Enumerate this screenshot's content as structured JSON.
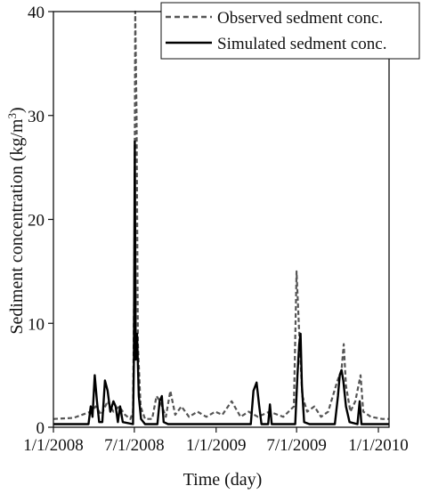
{
  "chart_data": {
    "type": "line",
    "xlabel": "Time (day)",
    "ylabel_main": "Sediment concentration (kg/m",
    "ylabel_sup": "3",
    "ylabel_tail": ")",
    "xlim": [
      "2008-01-01",
      "2010-01-25"
    ],
    "ylim": [
      0,
      40
    ],
    "x_ticks": [
      {
        "date": "2008-01-01",
        "label": "1/1/2008"
      },
      {
        "date": "2008-07-01",
        "label": "7/1/2008"
      },
      {
        "date": "2009-01-01",
        "label": "1/1/2009"
      },
      {
        "date": "2009-07-01",
        "label": "7/1/2009"
      },
      {
        "date": "2010-01-01",
        "label": "1/1/2010"
      }
    ],
    "y_ticks": [
      0,
      10,
      20,
      30,
      40
    ],
    "grid": false,
    "legend_position": "top-right",
    "series": [
      {
        "name": "Observed sedment conc.",
        "style": "dashed",
        "color": "#555555",
        "points": [
          [
            "2008-01-01",
            0.8
          ],
          [
            "2008-02-15",
            0.9
          ],
          [
            "2008-03-25",
            1.5
          ],
          [
            "2008-04-05",
            2.0
          ],
          [
            "2008-04-18",
            1.2
          ],
          [
            "2008-05-02",
            2.5
          ],
          [
            "2008-05-15",
            1.5
          ],
          [
            "2008-05-28",
            2.0
          ],
          [
            "2008-06-10",
            1.2
          ],
          [
            "2008-06-22",
            0.8
          ],
          [
            "2008-06-28",
            1.5
          ],
          [
            "2008-07-01",
            15.0
          ],
          [
            "2008-07-03",
            40.0
          ],
          [
            "2008-07-06",
            30.0
          ],
          [
            "2008-07-09",
            8.0
          ],
          [
            "2008-07-15",
            2.0
          ],
          [
            "2008-07-25",
            0.8
          ],
          [
            "2008-08-10",
            0.8
          ],
          [
            "2008-08-20",
            3.0
          ],
          [
            "2008-08-28",
            2.5
          ],
          [
            "2008-09-10",
            1.0
          ],
          [
            "2008-09-20",
            3.5
          ],
          [
            "2008-10-01",
            1.2
          ],
          [
            "2008-10-15",
            2.0
          ],
          [
            "2008-11-01",
            1.0
          ],
          [
            "2008-11-20",
            1.5
          ],
          [
            "2008-12-10",
            1.0
          ],
          [
            "2008-12-30",
            1.5
          ],
          [
            "2009-01-15",
            1.2
          ],
          [
            "2009-02-05",
            2.5
          ],
          [
            "2009-02-25",
            1.0
          ],
          [
            "2009-03-15",
            1.5
          ],
          [
            "2009-04-05",
            1.0
          ],
          [
            "2009-05-01",
            1.5
          ],
          [
            "2009-06-01",
            1.0
          ],
          [
            "2009-06-25",
            2.0
          ],
          [
            "2009-07-01",
            15.0
          ],
          [
            "2009-07-04",
            12.0
          ],
          [
            "2009-07-08",
            8.0
          ],
          [
            "2009-07-14",
            3.0
          ],
          [
            "2009-07-25",
            1.5
          ],
          [
            "2009-08-10",
            2.0
          ],
          [
            "2009-08-25",
            1.0
          ],
          [
            "2009-09-10",
            1.5
          ],
          [
            "2009-10-01",
            4.5
          ],
          [
            "2009-10-10",
            5.5
          ],
          [
            "2009-10-15",
            8.0
          ],
          [
            "2009-10-20",
            4.0
          ],
          [
            "2009-10-30",
            1.5
          ],
          [
            "2009-11-10",
            2.5
          ],
          [
            "2009-11-22",
            5.0
          ],
          [
            "2009-11-28",
            1.5
          ],
          [
            "2009-12-15",
            1.0
          ],
          [
            "2010-01-10",
            0.8
          ],
          [
            "2010-01-25",
            0.8
          ]
        ]
      },
      {
        "name": "Simulated sedment conc.",
        "style": "solid",
        "color": "#000000",
        "points": [
          [
            "2008-01-01",
            0.3
          ],
          [
            "2008-03-20",
            0.3
          ],
          [
            "2008-03-25",
            2.0
          ],
          [
            "2008-03-29",
            1.0
          ],
          [
            "2008-04-03",
            5.0
          ],
          [
            "2008-04-08",
            2.5
          ],
          [
            "2008-04-13",
            0.5
          ],
          [
            "2008-04-20",
            0.5
          ],
          [
            "2008-04-26",
            4.5
          ],
          [
            "2008-05-02",
            3.5
          ],
          [
            "2008-05-08",
            1.5
          ],
          [
            "2008-05-15",
            2.5
          ],
          [
            "2008-05-20",
            2.0
          ],
          [
            "2008-05-25",
            0.5
          ],
          [
            "2008-05-30",
            2.0
          ],
          [
            "2008-06-05",
            0.5
          ],
          [
            "2008-06-28",
            0.3
          ],
          [
            "2008-06-30",
            6.5
          ],
          [
            "2008-07-02",
            27.5
          ],
          [
            "2008-07-04",
            6.5
          ],
          [
            "2008-07-07",
            9.0
          ],
          [
            "2008-07-11",
            3.0
          ],
          [
            "2008-07-16",
            0.8
          ],
          [
            "2008-07-25",
            0.3
          ],
          [
            "2008-08-22",
            0.3
          ],
          [
            "2008-08-27",
            2.5
          ],
          [
            "2008-09-01",
            3.0
          ],
          [
            "2008-09-05",
            0.5
          ],
          [
            "2008-09-15",
            0.3
          ],
          [
            "2009-03-20",
            0.3
          ],
          [
            "2009-03-26",
            3.5
          ],
          [
            "2009-04-02",
            4.3
          ],
          [
            "2009-04-08",
            2.0
          ],
          [
            "2009-04-13",
            0.3
          ],
          [
            "2009-04-28",
            0.3
          ],
          [
            "2009-05-02",
            2.2
          ],
          [
            "2009-05-06",
            0.3
          ],
          [
            "2009-06-28",
            0.3
          ],
          [
            "2009-07-03",
            5.0
          ],
          [
            "2009-07-07",
            8.0
          ],
          [
            "2009-07-10",
            9.0
          ],
          [
            "2009-07-13",
            4.0
          ],
          [
            "2009-07-18",
            0.5
          ],
          [
            "2009-07-30",
            0.3
          ],
          [
            "2009-09-25",
            0.3
          ],
          [
            "2009-10-02",
            3.0
          ],
          [
            "2009-10-06",
            5.0
          ],
          [
            "2009-10-10",
            5.5
          ],
          [
            "2009-10-14",
            4.5
          ],
          [
            "2009-10-20",
            2.0
          ],
          [
            "2009-10-28",
            0.5
          ],
          [
            "2009-11-15",
            0.3
          ],
          [
            "2009-11-20",
            2.5
          ],
          [
            "2009-11-24",
            0.3
          ],
          [
            "2010-01-25",
            0.3
          ]
        ]
      }
    ]
  }
}
